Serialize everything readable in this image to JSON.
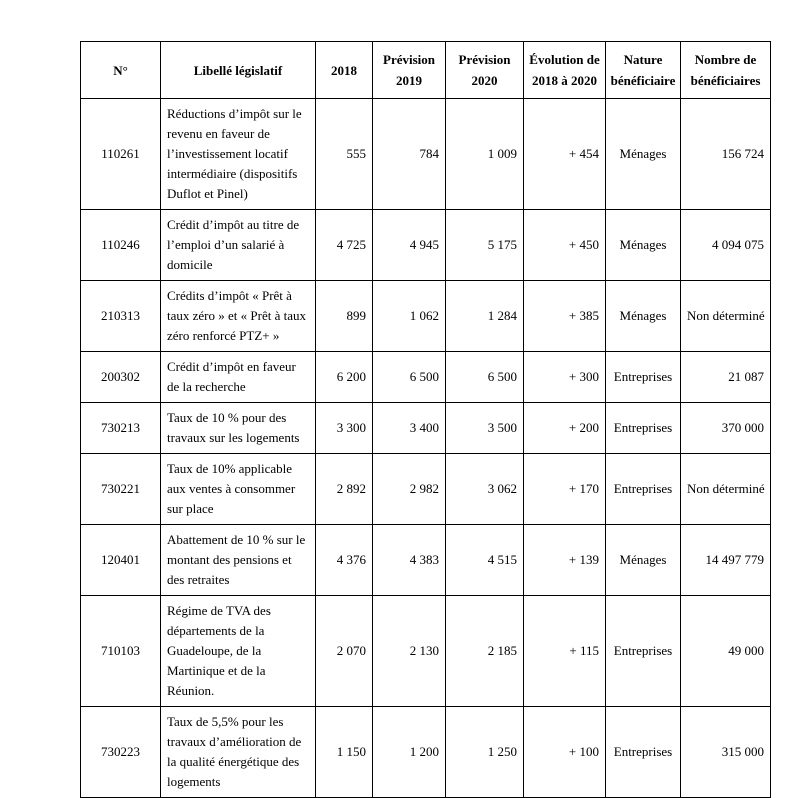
{
  "colors": {
    "background": "#ffffff",
    "text": "#000000",
    "border": "#000000"
  },
  "table": {
    "columns": [
      {
        "key": "num",
        "label": "N°"
      },
      {
        "key": "libelle",
        "label": "Libellé législatif"
      },
      {
        "key": "y2018",
        "label": "2018"
      },
      {
        "key": "prev2019",
        "label": "Prévision\n2019"
      },
      {
        "key": "prev2020",
        "label": "Prévision\n2020"
      },
      {
        "key": "evolution",
        "label": "Évolution de\n2018 à 2020"
      },
      {
        "key": "nature",
        "label": "Nature\nbénéficiaire"
      },
      {
        "key": "nombre",
        "label": "Nombre de\nbénéficiaires"
      }
    ],
    "rows": [
      {
        "num": "110261",
        "libelle": "Réductions d’impôt sur le revenu en faveur de l’investissement locatif intermédiaire (dispositifs Duflot et Pinel)",
        "y2018": "555",
        "prev2019": "784",
        "prev2020": "1 009",
        "evolution": "+ 454",
        "nature": "Ménages",
        "nombre": "156 724"
      },
      {
        "num": "110246",
        "libelle": "Crédit d’impôt au titre de l’emploi d’un salarié à domicile",
        "y2018": "4 725",
        "prev2019": "4 945",
        "prev2020": "5 175",
        "evolution": "+ 450",
        "nature": "Ménages",
        "nombre": "4 094 075"
      },
      {
        "num": "210313",
        "libelle": "Crédits d’impôt « Prêt à taux zéro » et « Prêt à taux zéro renforcé PTZ+ »",
        "y2018": "899",
        "prev2019": "1 062",
        "prev2020": "1 284",
        "evolution": "+ 385",
        "nature": "Ménages",
        "nombre": "Non déterminé"
      },
      {
        "num": "200302",
        "libelle": "Crédit d’impôt en faveur de la recherche",
        "y2018": "6 200",
        "prev2019": "6 500",
        "prev2020": "6 500",
        "evolution": "+ 300",
        "nature": "Entreprises",
        "nombre": "21 087"
      },
      {
        "num": "730213",
        "libelle": "Taux de 10 % pour des travaux sur les logements",
        "y2018": "3 300",
        "prev2019": "3 400",
        "prev2020": "3 500",
        "evolution": "+ 200",
        "nature": "Entreprises",
        "nombre": "370 000"
      },
      {
        "num": "730221",
        "libelle": "Taux de 10% applicable aux ventes à consommer sur place",
        "y2018": "2 892",
        "prev2019": "2 982",
        "prev2020": "3 062",
        "evolution": "+ 170",
        "nature": "Entreprises",
        "nombre": "Non déterminé"
      },
      {
        "num": "120401",
        "libelle": "Abattement de 10 % sur le montant des pensions et des retraites",
        "y2018": "4 376",
        "prev2019": "4 383",
        "prev2020": "4 515",
        "evolution": "+ 139",
        "nature": "Ménages",
        "nombre": "14 497 779"
      },
      {
        "num": "710103",
        "libelle": "Régime de TVA des départements de la Guadeloupe, de la Martinique et de la Réunion.",
        "y2018": "2 070",
        "prev2019": "2 130",
        "prev2020": "2 185",
        "evolution": "+ 115",
        "nature": "Entreprises",
        "nombre": "49 000"
      },
      {
        "num": "730223",
        "libelle": "Taux de 5,5% pour les travaux d’amélioration de la qualité énergétique des logements",
        "y2018": "1 150",
        "prev2019": "1 200",
        "prev2020": "1 250",
        "evolution": "+ 100",
        "nature": "Entreprises",
        "nombre": "315 000"
      }
    ]
  }
}
